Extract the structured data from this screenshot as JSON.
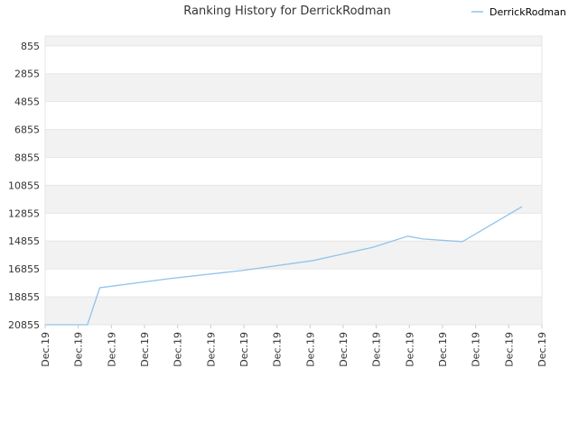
{
  "chart_data": {
    "type": "line",
    "title": "Ranking History for DerrickRodman",
    "xlabel": "",
    "ylabel": "",
    "legend_position": "top-right",
    "y_inverted": true,
    "ylim": [
      20855,
      855
    ],
    "y_ticks": [
      855,
      2855,
      4855,
      6855,
      8855,
      10855,
      12855,
      14855,
      16855,
      18855,
      20855
    ],
    "x_tick_labels": [
      "Dec.19",
      "Dec.19",
      "Dec.19",
      "Dec.19",
      "Dec.19",
      "Dec.19",
      "Dec.19",
      "Dec.19",
      "Dec.19",
      "Dec.19",
      "Dec.19",
      "Dec.19",
      "Dec.19",
      "Dec.19",
      "Dec.19",
      "Dec.19"
    ],
    "grid": true,
    "band_color": "#f2f2f2",
    "grid_color": "#e6e6e6",
    "series": [
      {
        "name": "DerrickRodman",
        "color": "#90c3ec",
        "x": [
          0.0,
          0.085,
          0.11,
          0.25,
          0.4,
          0.54,
          0.66,
          0.73,
          0.76,
          0.84,
          0.96
        ],
        "y": [
          20855,
          20855,
          18200,
          17550,
          16950,
          16250,
          15300,
          14500,
          14700,
          14900,
          12385
        ]
      }
    ]
  }
}
